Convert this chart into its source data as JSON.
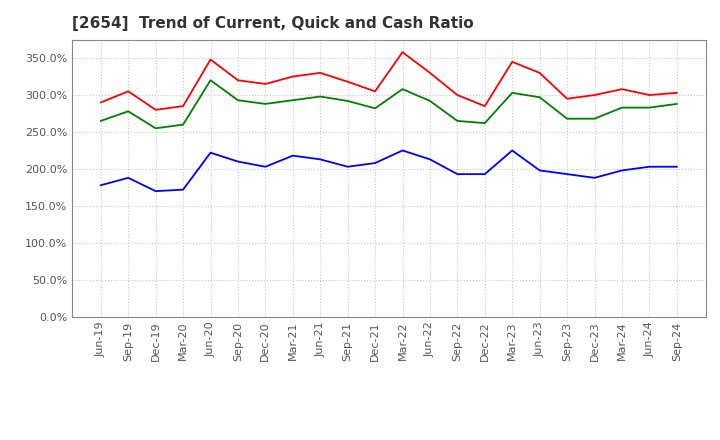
{
  "title": "[2654]  Trend of Current, Quick and Cash Ratio",
  "x_labels": [
    "Jun-19",
    "Sep-19",
    "Dec-19",
    "Mar-20",
    "Jun-20",
    "Sep-20",
    "Dec-20",
    "Mar-21",
    "Jun-21",
    "Sep-21",
    "Dec-21",
    "Mar-22",
    "Jun-22",
    "Sep-22",
    "Dec-22",
    "Mar-23",
    "Jun-23",
    "Sep-23",
    "Dec-23",
    "Mar-24",
    "Jun-24",
    "Sep-24"
  ],
  "current_ratio": [
    290,
    305,
    280,
    285,
    348,
    320,
    315,
    325,
    330,
    318,
    305,
    358,
    330,
    300,
    285,
    345,
    330,
    295,
    300,
    308,
    300,
    303
  ],
  "quick_ratio": [
    265,
    278,
    255,
    260,
    320,
    293,
    288,
    293,
    298,
    292,
    282,
    308,
    292,
    265,
    262,
    303,
    297,
    268,
    268,
    283,
    283,
    288
  ],
  "cash_ratio": [
    178,
    188,
    170,
    172,
    222,
    210,
    203,
    218,
    213,
    203,
    208,
    225,
    213,
    193,
    193,
    225,
    198,
    193,
    188,
    198,
    203,
    203
  ],
  "current_color": "#ff0000",
  "quick_color": "#008000",
  "cash_color": "#0000ff",
  "ylim": [
    0,
    375
  ],
  "yticks": [
    0,
    50,
    100,
    150,
    200,
    250,
    300,
    350
  ],
  "background_color": "#ffffff",
  "grid_color": "#c8c8c8",
  "title_fontsize": 11,
  "tick_fontsize": 8,
  "legend_fontsize": 9,
  "line_width": 1.3
}
